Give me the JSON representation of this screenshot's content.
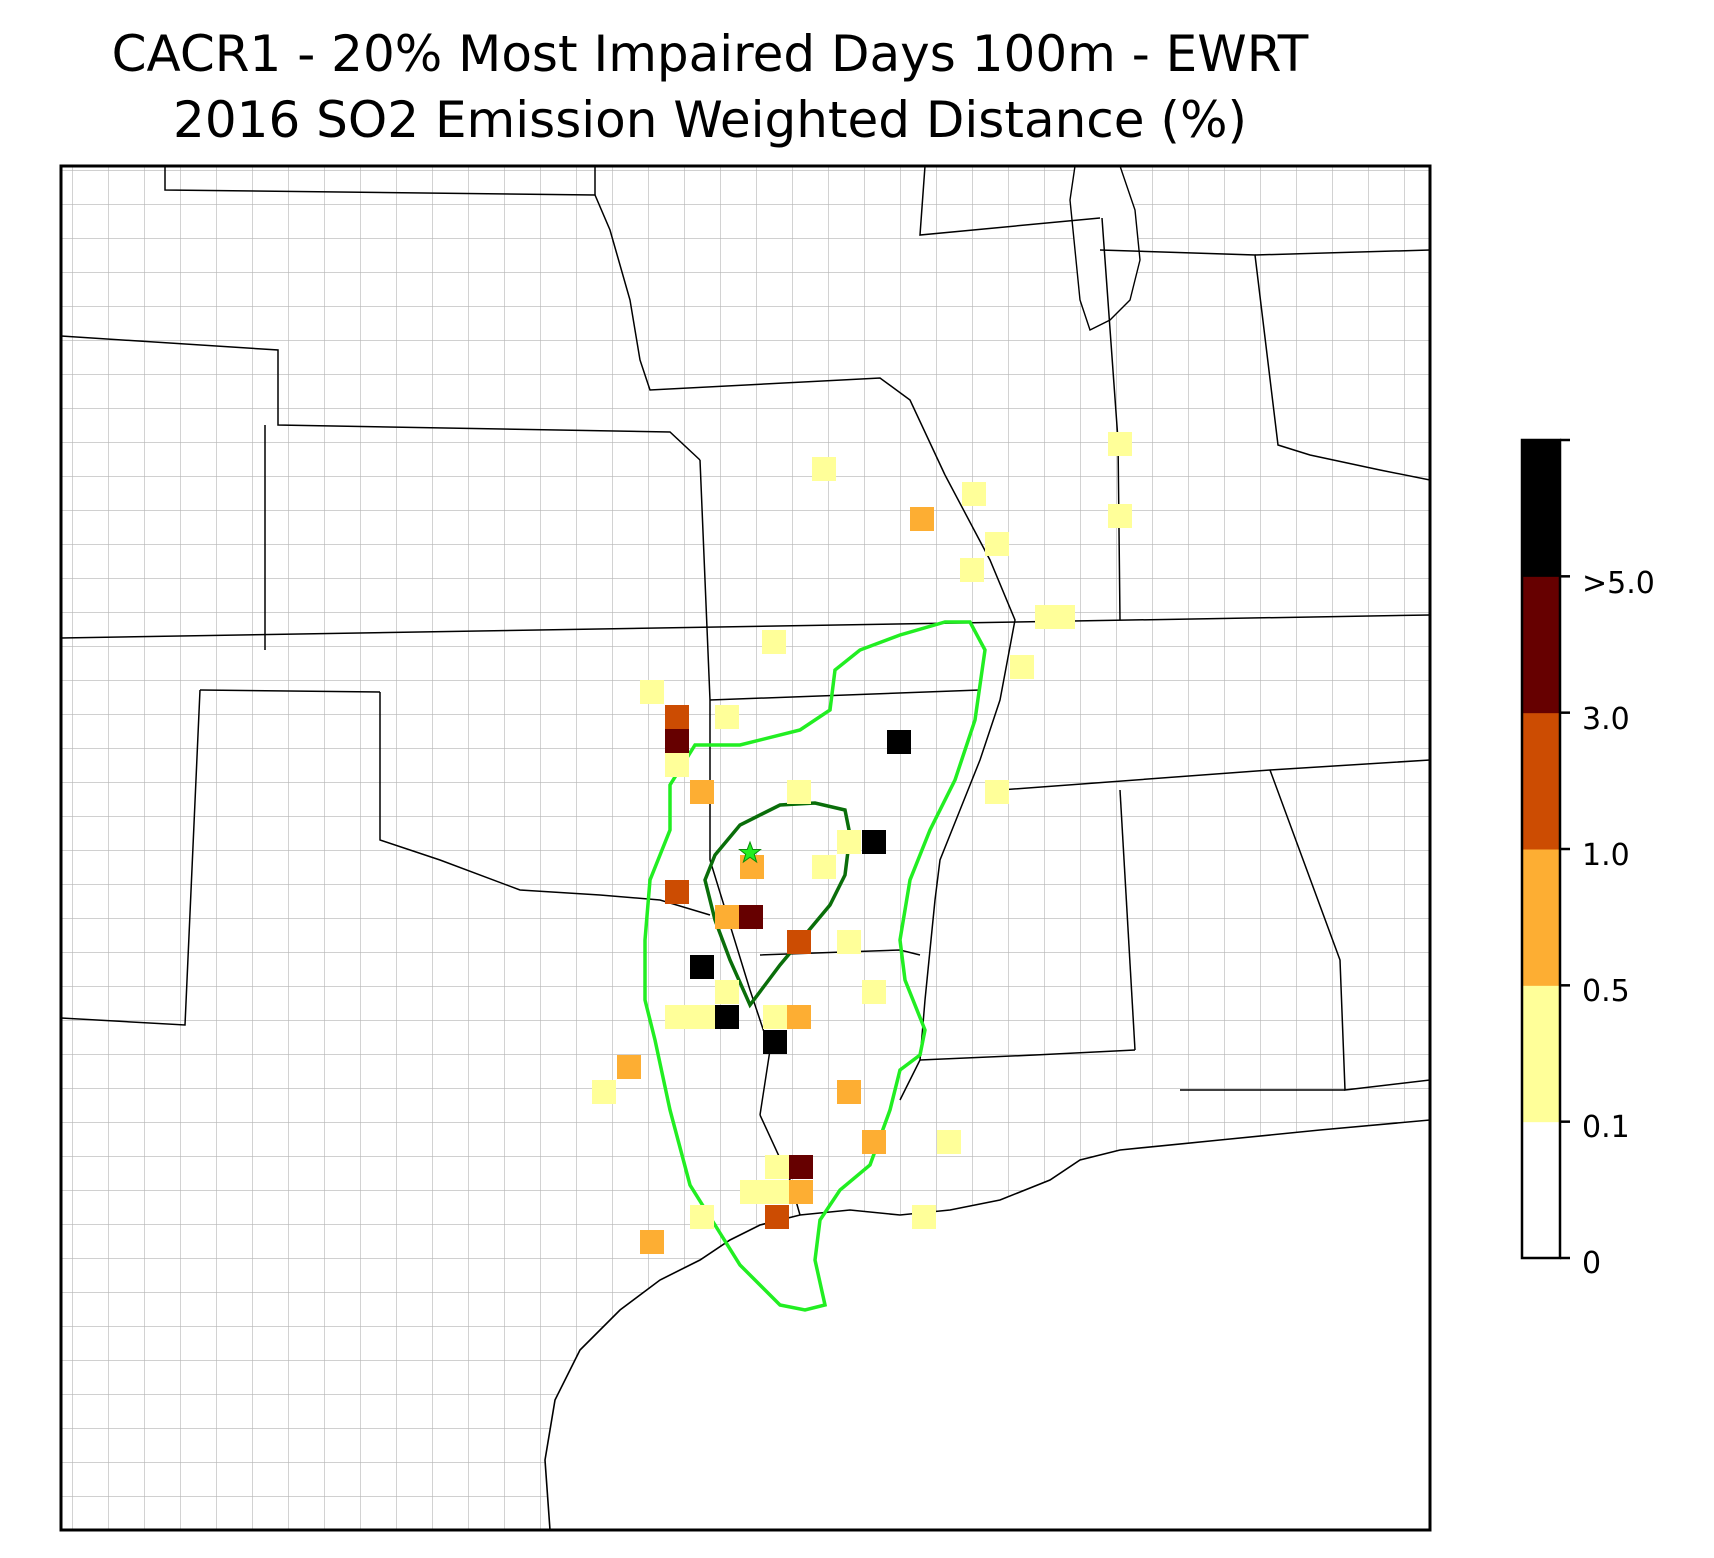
{
  "title_line1": "CACR1 - 20% Most Impaired Days 100m - EWRT",
  "title_line2": "2016 SO2 Emission Weighted Distance (%)",
  "colorbar": {
    "labels": [
      ">5.0",
      "3.0",
      "1.0",
      "0.5",
      "0.1",
      "0"
    ],
    "bins": [
      {
        "color": "#ffffff"
      },
      {
        "color": "#ffff99"
      },
      {
        "color": "#fdae33"
      },
      {
        "color": "#cc4c02"
      },
      {
        "color": "#660000"
      },
      {
        "color": "#000000"
      }
    ]
  },
  "colors": {
    "outer_contour": "#22ee22",
    "inner_contour": "#0a6e0a",
    "site_marker": "#22ee22",
    "state_border": "#000000",
    "county_border": "#a0a0a0"
  },
  "icons": {
    "site_marker": "star-icon"
  }
}
